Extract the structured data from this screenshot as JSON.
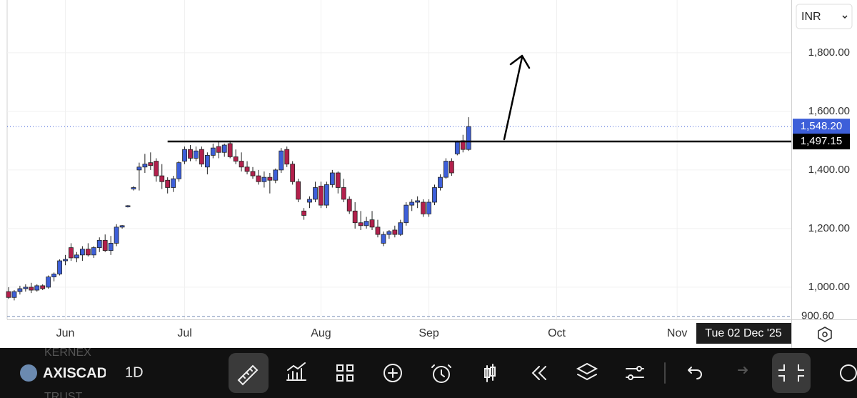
{
  "chart_data": {
    "type": "candlestick",
    "currency": "INR",
    "interval": "1D",
    "symbol": "AXISCADES",
    "watch_above": "KERNEX",
    "watch_below": "TRUST",
    "crosshair_date": "Tue 02 Dec '25",
    "up_color": "#3d5fd9",
    "down_color": "#b3204c",
    "ylim": [
      895,
      1980
    ],
    "yticks": [
      {
        "value": 1000,
        "label": "1,000.00"
      },
      {
        "value": 1200,
        "label": "1,200.00"
      },
      {
        "value": 1400,
        "label": "1,400.00"
      },
      {
        "value": 1600,
        "label": "1,600.00"
      },
      {
        "value": 1800,
        "label": "1,800.00"
      }
    ],
    "xlim": [
      -0.25,
      137.8
    ],
    "xticks": [
      {
        "value": 10,
        "label": "Jun"
      },
      {
        "value": 31,
        "label": "Jul"
      },
      {
        "value": 55,
        "label": "Aug"
      },
      {
        "value": 74,
        "label": "Sep"
      },
      {
        "value": 96.5,
        "label": "Oct"
      },
      {
        "value": 117.7,
        "label": "Nov"
      }
    ],
    "last_price": {
      "value": 1548.2,
      "label": "1,548.20"
    },
    "level": {
      "value": 1497.15,
      "label": "1,497.15",
      "start": 28
    },
    "low_line": {
      "value": 900.6,
      "label": "900.60"
    },
    "x": [
      0,
      1,
      2,
      3,
      4,
      5,
      6,
      7,
      8,
      9,
      10,
      11,
      12,
      13,
      14,
      15,
      16,
      17,
      18,
      19,
      20,
      21,
      22,
      23,
      24,
      25,
      26,
      27,
      28,
      29,
      30,
      31,
      32,
      33,
      34,
      35,
      36,
      37,
      38,
      39,
      40,
      41,
      42,
      43,
      44,
      45,
      46,
      47,
      48,
      49,
      50,
      51,
      52,
      53,
      54,
      55,
      56,
      57,
      58,
      59,
      60,
      61,
      62,
      63,
      64,
      65,
      66,
      67,
      68,
      69,
      70,
      71,
      72,
      73,
      74,
      75,
      76,
      77,
      78,
      79,
      80,
      81
    ],
    "candles": [
      [
        985,
        1000,
        960,
        965
      ],
      [
        965,
        990,
        955,
        985
      ],
      [
        985,
        1005,
        975,
        995
      ],
      [
        995,
        1010,
        985,
        1000
      ],
      [
        1000,
        1015,
        980,
        990
      ],
      [
        990,
        1010,
        985,
        1005
      ],
      [
        1005,
        1010,
        990,
        995
      ],
      [
        1000,
        1040,
        995,
        1035
      ],
      [
        1035,
        1050,
        1020,
        1045
      ],
      [
        1045,
        1095,
        1040,
        1090
      ],
      [
        1090,
        1110,
        1075,
        1095
      ],
      [
        1135,
        1150,
        1090,
        1100
      ],
      [
        1100,
        1120,
        1085,
        1110
      ],
      [
        1110,
        1140,
        1090,
        1130
      ],
      [
        1130,
        1150,
        1105,
        1110
      ],
      [
        1110,
        1140,
        1100,
        1135
      ],
      [
        1135,
        1170,
        1120,
        1160
      ],
      [
        1160,
        1180,
        1120,
        1125
      ],
      [
        1125,
        1175,
        1110,
        1150
      ],
      [
        1150,
        1215,
        1140,
        1205
      ],
      [
        1205,
        1212,
        1200,
        1210
      ],
      [
        1275,
        1280,
        1272,
        1278
      ],
      [
        1335,
        1345,
        1330,
        1340
      ],
      [
        1400,
        1425,
        1330,
        1410
      ],
      [
        1410,
        1455,
        1390,
        1420
      ],
      [
        1425,
        1460,
        1400,
        1415
      ],
      [
        1430,
        1440,
        1360,
        1380
      ],
      [
        1380,
        1420,
        1335,
        1360
      ],
      [
        1365,
        1375,
        1320,
        1340
      ],
      [
        1340,
        1380,
        1325,
        1370
      ],
      [
        1370,
        1430,
        1360,
        1425
      ],
      [
        1430,
        1480,
        1420,
        1470
      ],
      [
        1470,
        1485,
        1430,
        1440
      ],
      [
        1440,
        1480,
        1430,
        1465
      ],
      [
        1470,
        1480,
        1410,
        1420
      ],
      [
        1410,
        1460,
        1385,
        1450
      ],
      [
        1450,
        1490,
        1440,
        1475
      ],
      [
        1480,
        1495,
        1440,
        1460
      ],
      [
        1460,
        1490,
        1445,
        1485
      ],
      [
        1490,
        1500,
        1440,
        1445
      ],
      [
        1445,
        1470,
        1420,
        1430
      ],
      [
        1430,
        1460,
        1395,
        1410
      ],
      [
        1410,
        1430,
        1385,
        1395
      ],
      [
        1395,
        1410,
        1370,
        1380
      ],
      [
        1380,
        1400,
        1350,
        1360
      ],
      [
        1360,
        1395,
        1340,
        1375
      ],
      [
        1375,
        1390,
        1320,
        1365
      ],
      [
        1365,
        1405,
        1355,
        1400
      ],
      [
        1400,
        1475,
        1390,
        1465
      ],
      [
        1470,
        1480,
        1410,
        1420
      ],
      [
        1420,
        1430,
        1350,
        1360
      ],
      [
        1360,
        1370,
        1290,
        1300
      ],
      [
        1260,
        1270,
        1230,
        1245
      ],
      [
        1290,
        1310,
        1270,
        1300
      ],
      [
        1300,
        1360,
        1290,
        1340
      ],
      [
        1345,
        1360,
        1270,
        1280
      ],
      [
        1280,
        1360,
        1270,
        1350
      ],
      [
        1350,
        1400,
        1340,
        1390
      ],
      [
        1390,
        1395,
        1320,
        1340
      ],
      [
        1340,
        1370,
        1290,
        1300
      ],
      [
        1300,
        1310,
        1250,
        1260
      ],
      [
        1260,
        1290,
        1200,
        1220
      ],
      [
        1220,
        1260,
        1195,
        1210
      ],
      [
        1210,
        1240,
        1200,
        1225
      ],
      [
        1230,
        1260,
        1195,
        1205
      ],
      [
        1205,
        1230,
        1170,
        1180
      ],
      [
        1150,
        1190,
        1140,
        1180
      ],
      [
        1180,
        1195,
        1165,
        1190
      ],
      [
        1195,
        1210,
        1170,
        1180
      ],
      [
        1180,
        1230,
        1175,
        1220
      ],
      [
        1220,
        1290,
        1210,
        1280
      ],
      [
        1280,
        1300,
        1260,
        1290
      ],
      [
        1290,
        1310,
        1270,
        1295
      ],
      [
        1290,
        1300,
        1240,
        1250
      ],
      [
        1250,
        1300,
        1240,
        1290
      ],
      [
        1290,
        1350,
        1280,
        1340
      ],
      [
        1340,
        1385,
        1330,
        1375
      ],
      [
        1375,
        1440,
        1370,
        1430
      ],
      [
        1430,
        1440,
        1380,
        1390
      ],
      [
        1455,
        1500,
        1450,
        1495
      ],
      [
        1500,
        1520,
        1460,
        1470
      ],
      [
        1470,
        1580,
        1465,
        1548.2
      ]
    ]
  }
}
